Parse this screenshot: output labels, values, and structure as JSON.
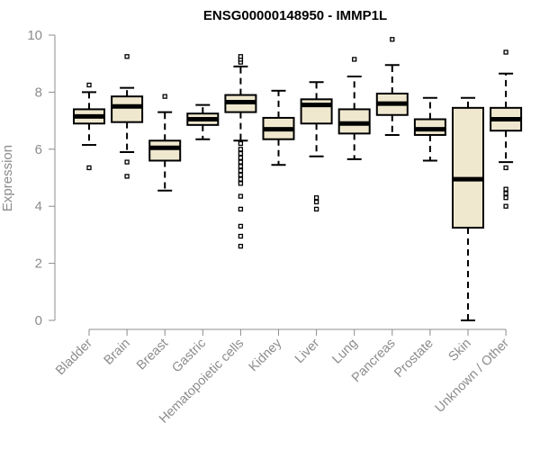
{
  "chart_data": {
    "type": "boxplot",
    "title": "ENSG00000148950 - IMMP1L",
    "ylabel": "Expression",
    "ylim": [
      0,
      10
    ],
    "yticks": [
      0,
      2,
      4,
      6,
      8,
      10
    ],
    "grid": false,
    "box_color": "#efe8cf",
    "axis_color": "#8c8c8c",
    "categories": [
      "Bladder",
      "Brain",
      "Breast",
      "Gastric",
      "Hematopoietic cells",
      "Kidney",
      "Liver",
      "Lung",
      "Pancreas",
      "Prostate",
      "Skin",
      "Unknown / Other"
    ],
    "boxes": [
      {
        "whisker_low": 6.15,
        "q1": 6.9,
        "median": 7.15,
        "q3": 7.4,
        "whisker_high": 8.0,
        "outliers": [
          5.35,
          8.25
        ]
      },
      {
        "whisker_low": 5.9,
        "q1": 6.95,
        "median": 7.5,
        "q3": 7.85,
        "whisker_high": 8.15,
        "outliers": [
          5.05,
          5.55,
          9.25
        ]
      },
      {
        "whisker_low": 4.55,
        "q1": 5.6,
        "median": 6.05,
        "q3": 6.3,
        "whisker_high": 7.3,
        "outliers": [
          7.85
        ]
      },
      {
        "whisker_low": 6.35,
        "q1": 6.85,
        "median": 7.05,
        "q3": 7.25,
        "whisker_high": 7.55,
        "outliers": []
      },
      {
        "whisker_low": 6.3,
        "q1": 7.3,
        "median": 7.65,
        "q3": 7.9,
        "whisker_high": 8.9,
        "outliers": [
          2.6,
          2.95,
          3.3,
          3.9,
          4.35,
          4.8,
          4.95,
          5.1,
          5.25,
          5.4,
          5.55,
          5.7,
          5.85,
          6.0,
          6.2,
          9.05,
          9.15,
          9.25
        ]
      },
      {
        "whisker_low": 5.45,
        "q1": 6.35,
        "median": 6.7,
        "q3": 7.1,
        "whisker_high": 8.05,
        "outliers": []
      },
      {
        "whisker_low": 5.75,
        "q1": 6.9,
        "median": 7.55,
        "q3": 7.75,
        "whisker_high": 8.35,
        "outliers": [
          3.9,
          4.15,
          4.3
        ]
      },
      {
        "whisker_low": 5.65,
        "q1": 6.55,
        "median": 6.9,
        "q3": 7.4,
        "whisker_high": 8.55,
        "outliers": [
          9.15
        ]
      },
      {
        "whisker_low": 6.5,
        "q1": 7.2,
        "median": 7.6,
        "q3": 7.95,
        "whisker_high": 8.95,
        "outliers": [
          9.85
        ]
      },
      {
        "whisker_low": 5.6,
        "q1": 6.5,
        "median": 6.7,
        "q3": 7.05,
        "whisker_high": 7.8,
        "outliers": []
      },
      {
        "whisker_low": 0.0,
        "q1": 3.25,
        "median": 4.95,
        "q3": 7.45,
        "whisker_high": 7.8,
        "outliers": []
      },
      {
        "whisker_low": 5.55,
        "q1": 6.65,
        "median": 7.05,
        "q3": 7.45,
        "whisker_high": 8.65,
        "outliers": [
          4.0,
          4.3,
          4.45,
          4.6,
          5.35,
          9.4
        ]
      }
    ]
  }
}
